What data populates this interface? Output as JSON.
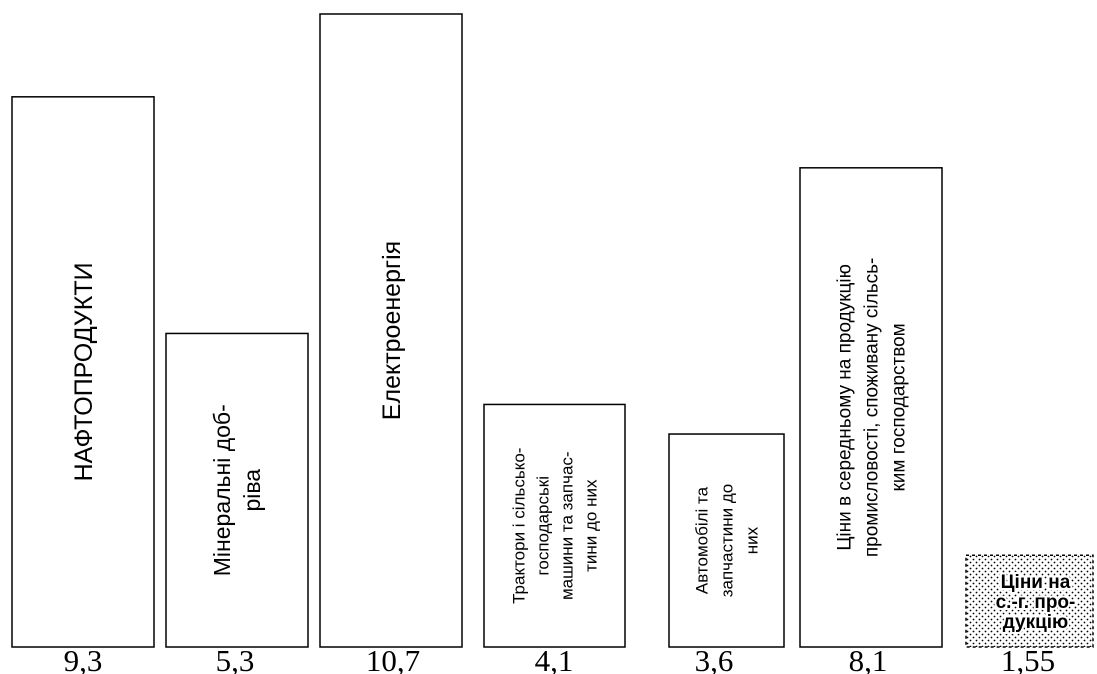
{
  "chart_data": {
    "type": "bar",
    "title": "",
    "xlabel": "",
    "ylabel": "",
    "ylim": [
      0,
      10.7
    ],
    "grid": false,
    "legend": "none",
    "categories": [
      "НАФТОПРОДУКТИ",
      "Мінеральні доб-ріва",
      "Електроенергія",
      "Трактори і сільсько-господарські машини та запчас-тини до них",
      "Автомобілі та запчастини до них",
      "Ціни в середньому на продукцію промисловості, споживану сільсь-ким господарством",
      "Ціни на с.-г. про-дукцію"
    ],
    "category_lines": [
      [
        "НАФТОПРОДУКТИ"
      ],
      [
        "Мінеральні доб-",
        "ріва"
      ],
      [
        "Електроенергія"
      ],
      [
        "Трактори і сільсько-",
        "господарські",
        "машини та запчас-",
        "тини до них"
      ],
      [
        "Автомобілі та",
        "запчастини до",
        "них"
      ],
      [
        "Ціни в середньому на продукцію",
        "промисловості, споживану сільсь-",
        "ким господарством"
      ],
      [
        "Ціни на",
        "с.-г. про-",
        "дукцію"
      ]
    ],
    "value_labels": [
      "9,3",
      "5,3",
      "10,7",
      "4,1",
      "3,6",
      "8,1",
      "1,55"
    ],
    "values": [
      9.3,
      5.3,
      10.7,
      4.1,
      3.6,
      8.1,
      1.55
    ],
    "highlight_index": 6
  }
}
